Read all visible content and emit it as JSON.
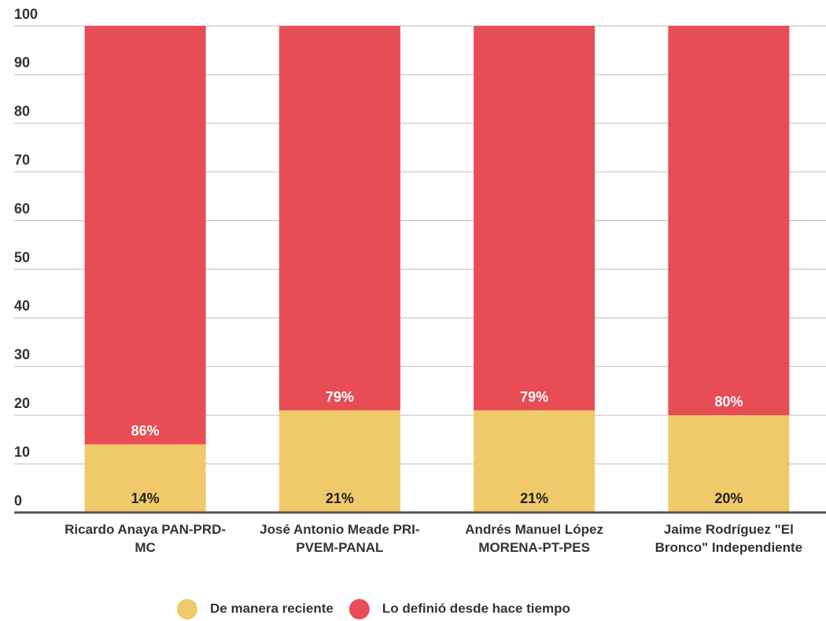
{
  "chart_data": {
    "type": "stacked_bar",
    "categories": [
      "Ricardo Anaya PAN-PRD-MC",
      "José Antonio Meade PRI-PVEM-PANAL",
      "Andrés Manuel López MORENA-PT-PES",
      "Jaime Rodríguez \"El Bronco\" Independiente"
    ],
    "series": [
      {
        "name": "De manera reciente",
        "color": "#f0c96b",
        "values": [
          14,
          21,
          21,
          20
        ],
        "value_labels": [
          "14%",
          "21%",
          "21%",
          "20%"
        ]
      },
      {
        "name": "Lo definió desde hace tiempo",
        "color": "#e84d55",
        "values": [
          86,
          79,
          79,
          80
        ],
        "value_labels": [
          "86%",
          "79%",
          "79%",
          "80%"
        ]
      }
    ],
    "ylim": [
      0,
      100
    ],
    "yticks": [
      0,
      10,
      20,
      30,
      40,
      50,
      60,
      70,
      80,
      90,
      100
    ],
    "grid": true,
    "legend": "bottom"
  }
}
